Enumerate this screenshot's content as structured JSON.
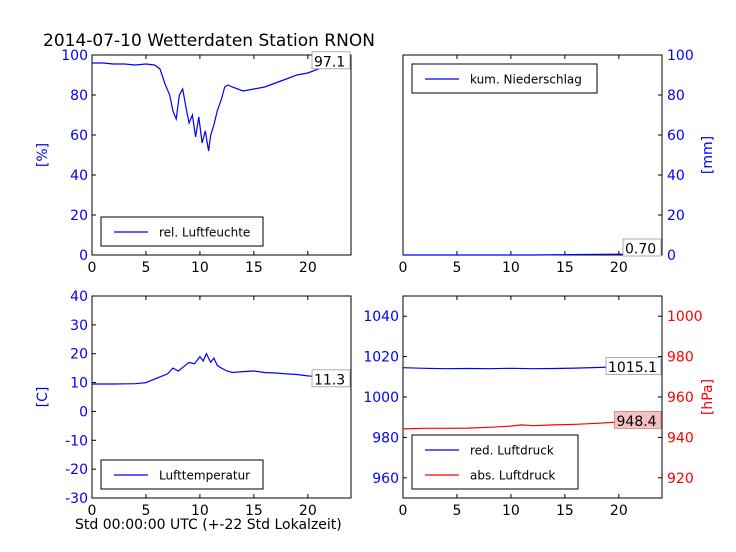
{
  "header": {
    "title": "2014-07-10 Wetterdaten Station RNON",
    "xlabel": "Std 00:00:00 UTC (+-22 Std Lokalzeit)"
  },
  "colors": {
    "blue": "#0000ff",
    "red": "#ff0000"
  },
  "chart_data": [
    {
      "type": "line",
      "title": "",
      "xlabel": "",
      "ylabel": "[%]",
      "xlim": [
        0,
        24
      ],
      "ylim": [
        0,
        100
      ],
      "xticks": [
        "0",
        "5",
        "10",
        "15",
        "20"
      ],
      "yticks": [
        "0",
        "20",
        "40",
        "60",
        "80",
        "100"
      ],
      "legend_position": "lower-left",
      "annotation": "97.1",
      "series": [
        {
          "name": "rel. Luftfeuchte",
          "color": "#0000ff",
          "x": [
            0,
            1,
            2,
            3,
            4,
            5,
            5.8,
            6.3,
            6.8,
            7.2,
            7.5,
            7.8,
            8.1,
            8.4,
            8.7,
            9.0,
            9.3,
            9.6,
            9.9,
            10.2,
            10.5,
            10.8,
            11.0,
            11.3,
            11.6,
            12.0,
            12.3,
            12.6,
            13,
            14,
            15,
            16,
            17,
            18,
            19,
            20,
            21,
            22,
            23,
            24
          ],
          "y": [
            96,
            96,
            95.5,
            95.5,
            95,
            95.5,
            95,
            93,
            85,
            80,
            72,
            68,
            80,
            83,
            74,
            66,
            70,
            59,
            69,
            56,
            62,
            52,
            60,
            65,
            72,
            78,
            84,
            85,
            84,
            82,
            83,
            84,
            86,
            88,
            90,
            91,
            93,
            96,
            97,
            97.1
          ]
        }
      ]
    },
    {
      "type": "line",
      "title": "",
      "xlabel": "",
      "ylabel": "[mm]",
      "xlim": [
        0,
        24
      ],
      "ylim": [
        0,
        100
      ],
      "xticks": [
        "0",
        "5",
        "10",
        "15",
        "20"
      ],
      "yticks": [
        "0",
        "20",
        "40",
        "60",
        "80",
        "100"
      ],
      "legend_position": "top-left",
      "annotation": "0.70",
      "series": [
        {
          "name": "kum. Niederschlag",
          "color": "#0000ff",
          "x": [
            0,
            6,
            12,
            18,
            22,
            24
          ],
          "y": [
            0,
            0,
            0,
            0.3,
            0.5,
            0.7
          ]
        }
      ]
    },
    {
      "type": "line",
      "title": "",
      "xlabel": "",
      "ylabel": "[C]",
      "xlim": [
        0,
        24
      ],
      "ylim": [
        -30,
        40
      ],
      "xticks": [
        "0",
        "5",
        "10",
        "15",
        "20"
      ],
      "yticks": [
        "-30",
        "-20",
        "-10",
        "0",
        "10",
        "20",
        "30",
        "40"
      ],
      "legend_position": "lower-left",
      "annotation": "11.3",
      "series": [
        {
          "name": "Lufttemperatur",
          "color": "#0000ff",
          "x": [
            0,
            2,
            4,
            5,
            6,
            7,
            7.5,
            8,
            8.5,
            9,
            9.5,
            10,
            10.3,
            10.6,
            11,
            11.3,
            11.6,
            12,
            12.5,
            13,
            14,
            15,
            16,
            17,
            18,
            19,
            20,
            21,
            22,
            23,
            24
          ],
          "y": [
            9.5,
            9.5,
            9.6,
            10,
            11.5,
            13,
            15,
            14,
            15.5,
            17,
            16.5,
            19,
            17.5,
            20,
            17,
            18.5,
            16,
            15,
            14,
            13.5,
            13.8,
            14,
            13.5,
            13.3,
            13,
            12.8,
            12.3,
            12,
            11.8,
            11.5,
            11.3
          ]
        }
      ]
    },
    {
      "type": "line",
      "title": "",
      "xlabel": "",
      "ylabel": "[hPa]",
      "xlim": [
        0,
        24
      ],
      "ylim_left": [
        950,
        1050
      ],
      "ylim_right": [
        910,
        1010
      ],
      "xticks": [
        "0",
        "5",
        "10",
        "15",
        "20"
      ],
      "yticks_left": [
        "960",
        "980",
        "1000",
        "1020",
        "1040"
      ],
      "yticks_right": [
        "920",
        "940",
        "960",
        "980",
        "1000"
      ],
      "legend_position": "lower-left",
      "annotations": [
        "1015.1",
        "948.4"
      ],
      "series": [
        {
          "name": "red. Luftdruck",
          "color": "#0000ff",
          "axis": "left",
          "x": [
            0,
            2,
            4,
            6,
            8,
            10,
            12,
            14,
            16,
            18,
            20,
            22,
            24
          ],
          "y": [
            1014.5,
            1014.2,
            1014,
            1014.1,
            1014,
            1014.2,
            1014,
            1014.1,
            1014.3,
            1014.6,
            1015,
            1015.4,
            1015.1
          ]
        },
        {
          "name": "abs. Luftdruck",
          "color": "#ff0000",
          "axis": "right",
          "x": [
            0,
            2,
            4,
            6,
            8,
            10,
            11,
            12,
            14,
            16,
            18,
            20,
            22,
            24
          ],
          "y": [
            944.2,
            944.5,
            944.5,
            944.6,
            945,
            945.6,
            946.2,
            945.8,
            946.2,
            946.5,
            947,
            947.6,
            948,
            948.4
          ]
        }
      ]
    }
  ]
}
